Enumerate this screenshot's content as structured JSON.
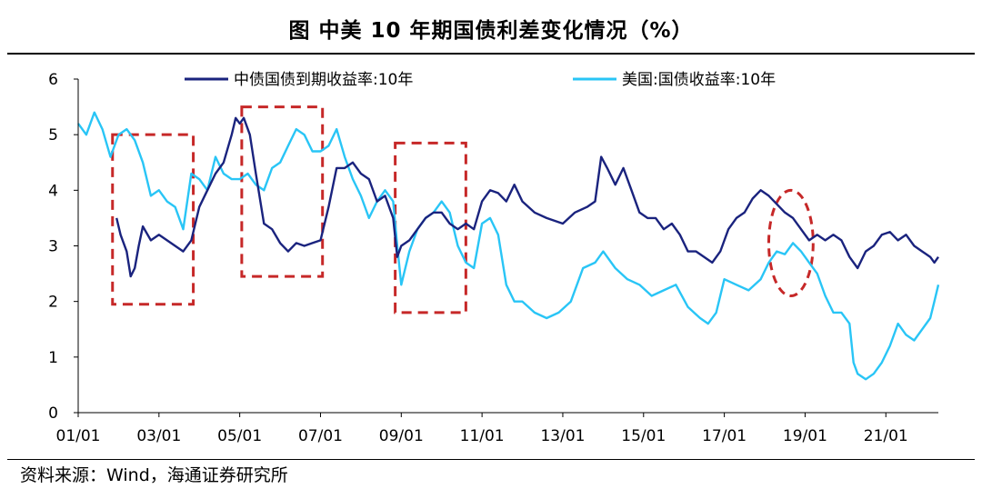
{
  "title": "图  中美 10 年期国债利差变化情况（%）",
  "source": "资料来源：Wind，海通证券研究所",
  "chart_data": {
    "type": "line",
    "x_tick_labels": [
      "01/01",
      "03/01",
      "05/01",
      "07/01",
      "09/01",
      "11/01",
      "13/01",
      "15/01",
      "17/01",
      "19/01",
      "21/01"
    ],
    "x_ticks": [
      2001.0,
      2003.0,
      2005.0,
      2007.0,
      2009.0,
      2011.0,
      2013.0,
      2015.0,
      2017.0,
      2019.0,
      2021.0
    ],
    "xlim": [
      2001.0,
      2022.3
    ],
    "ylim": [
      0,
      6
    ],
    "y_ticks": [
      0,
      1,
      2,
      3,
      4,
      5,
      6
    ],
    "grid": false,
    "legend_position": "top",
    "series": [
      {
        "name": "中债国债到期收益率:10年",
        "color": "#1a237e",
        "x": [
          2001.95,
          2002.05,
          2002.2,
          2002.3,
          2002.4,
          2002.5,
          2002.6,
          2002.8,
          2003.0,
          2003.2,
          2003.4,
          2003.6,
          2003.8,
          2004.0,
          2004.2,
          2004.4,
          2004.6,
          2004.8,
          2004.9,
          2005.0,
          2005.1,
          2005.25,
          2005.4,
          2005.6,
          2005.8,
          2006.0,
          2006.2,
          2006.4,
          2006.6,
          2006.8,
          2007.0,
          2007.2,
          2007.4,
          2007.6,
          2007.8,
          2008.0,
          2008.2,
          2008.4,
          2008.6,
          2008.8,
          2008.9,
          2009.0,
          2009.2,
          2009.4,
          2009.6,
          2009.8,
          2010.0,
          2010.2,
          2010.4,
          2010.6,
          2010.8,
          2011.0,
          2011.2,
          2011.4,
          2011.6,
          2011.8,
          2012.0,
          2012.3,
          2012.6,
          2013.0,
          2013.3,
          2013.6,
          2013.8,
          2013.95,
          2014.1,
          2014.3,
          2014.5,
          2014.7,
          2014.9,
          2015.1,
          2015.3,
          2015.5,
          2015.7,
          2015.9,
          2016.1,
          2016.3,
          2016.5,
          2016.7,
          2016.9,
          2017.1,
          2017.3,
          2017.5,
          2017.7,
          2017.9,
          2018.1,
          2018.3,
          2018.5,
          2018.7,
          2018.9,
          2019.1,
          2019.3,
          2019.5,
          2019.7,
          2019.9,
          2020.1,
          2020.3,
          2020.5,
          2020.7,
          2020.9,
          2021.1,
          2021.3,
          2021.5,
          2021.7,
          2021.9,
          2022.1,
          2022.2,
          2022.3
        ],
        "y": [
          3.5,
          3.2,
          2.9,
          2.45,
          2.6,
          3.0,
          3.35,
          3.1,
          3.2,
          3.1,
          3.0,
          2.9,
          3.1,
          3.7,
          4.0,
          4.3,
          4.5,
          5.0,
          5.3,
          5.2,
          5.3,
          5.0,
          4.3,
          3.4,
          3.3,
          3.05,
          2.9,
          3.05,
          3.0,
          3.05,
          3.1,
          3.7,
          4.4,
          4.4,
          4.5,
          4.3,
          4.2,
          3.8,
          3.9,
          3.5,
          2.8,
          3.0,
          3.1,
          3.3,
          3.5,
          3.6,
          3.6,
          3.4,
          3.3,
          3.4,
          3.3,
          3.8,
          4.0,
          3.95,
          3.8,
          4.1,
          3.8,
          3.6,
          3.5,
          3.4,
          3.6,
          3.7,
          3.8,
          4.6,
          4.4,
          4.1,
          4.4,
          4.0,
          3.6,
          3.5,
          3.5,
          3.3,
          3.4,
          3.2,
          2.9,
          2.9,
          2.8,
          2.7,
          2.9,
          3.3,
          3.5,
          3.6,
          3.85,
          4.0,
          3.9,
          3.75,
          3.6,
          3.5,
          3.3,
          3.1,
          3.2,
          3.1,
          3.2,
          3.1,
          2.8,
          2.6,
          2.9,
          3.0,
          3.2,
          3.25,
          3.1,
          3.2,
          3.0,
          2.9,
          2.8,
          2.7,
          2.8
        ]
      },
      {
        "name": "美国:国债收益率:10年",
        "color": "#29c5f6",
        "x": [
          2001.0,
          2001.2,
          2001.4,
          2001.6,
          2001.8,
          2002.0,
          2002.2,
          2002.4,
          2002.6,
          2002.8,
          2003.0,
          2003.2,
          2003.4,
          2003.6,
          2003.8,
          2004.0,
          2004.2,
          2004.4,
          2004.6,
          2004.8,
          2005.0,
          2005.2,
          2005.4,
          2005.6,
          2005.8,
          2006.0,
          2006.2,
          2006.4,
          2006.6,
          2006.8,
          2007.0,
          2007.2,
          2007.4,
          2007.6,
          2007.8,
          2008.0,
          2008.2,
          2008.4,
          2008.6,
          2008.8,
          2008.9,
          2009.0,
          2009.2,
          2009.4,
          2009.6,
          2009.8,
          2010.0,
          2010.2,
          2010.4,
          2010.6,
          2010.8,
          2011.0,
          2011.2,
          2011.4,
          2011.6,
          2011.8,
          2012.0,
          2012.3,
          2012.6,
          2012.9,
          2013.2,
          2013.5,
          2013.8,
          2014.0,
          2014.3,
          2014.6,
          2014.9,
          2015.2,
          2015.5,
          2015.8,
          2016.1,
          2016.4,
          2016.6,
          2016.8,
          2017.0,
          2017.3,
          2017.6,
          2017.9,
          2018.1,
          2018.3,
          2018.5,
          2018.7,
          2018.9,
          2019.1,
          2019.3,
          2019.5,
          2019.7,
          2019.9,
          2020.1,
          2020.2,
          2020.3,
          2020.5,
          2020.7,
          2020.9,
          2021.1,
          2021.3,
          2021.5,
          2021.7,
          2021.9,
          2022.1,
          2022.2,
          2022.3
        ],
        "y": [
          5.2,
          5.0,
          5.4,
          5.1,
          4.6,
          5.0,
          5.1,
          4.9,
          4.5,
          3.9,
          4.0,
          3.8,
          3.7,
          3.3,
          4.3,
          4.2,
          4.0,
          4.6,
          4.3,
          4.2,
          4.2,
          4.3,
          4.1,
          4.0,
          4.4,
          4.5,
          4.8,
          5.1,
          5.0,
          4.7,
          4.7,
          4.8,
          5.1,
          4.6,
          4.2,
          3.9,
          3.5,
          3.8,
          4.0,
          3.8,
          3.0,
          2.3,
          2.9,
          3.3,
          3.5,
          3.6,
          3.8,
          3.6,
          3.0,
          2.7,
          2.6,
          3.4,
          3.5,
          3.2,
          2.3,
          2.0,
          2.0,
          1.8,
          1.7,
          1.8,
          2.0,
          2.6,
          2.7,
          2.9,
          2.6,
          2.4,
          2.3,
          2.1,
          2.2,
          2.3,
          1.9,
          1.7,
          1.6,
          1.8,
          2.4,
          2.3,
          2.2,
          2.4,
          2.7,
          2.9,
          2.85,
          3.05,
          2.9,
          2.7,
          2.5,
          2.1,
          1.8,
          1.8,
          1.6,
          0.9,
          0.7,
          0.6,
          0.7,
          0.9,
          1.2,
          1.6,
          1.4,
          1.3,
          1.5,
          1.7,
          2.0,
          2.3
        ]
      }
    ],
    "annotations": [
      {
        "shape": "dashed-rect",
        "color": "#c62828",
        "x0": 2001.85,
        "x1": 2003.85,
        "y0": 1.95,
        "y1": 5.0
      },
      {
        "shape": "dashed-rect",
        "color": "#c62828",
        "x0": 2005.05,
        "x1": 2007.05,
        "y0": 2.45,
        "y1": 5.5
      },
      {
        "shape": "dashed-rect",
        "color": "#c62828",
        "x0": 2008.85,
        "x1": 2010.6,
        "y0": 1.8,
        "y1": 4.85
      },
      {
        "shape": "dashed-ellipse",
        "color": "#c62828",
        "cx": 2018.65,
        "cy": 3.05,
        "rx": 0.55,
        "ry": 0.95
      }
    ]
  }
}
